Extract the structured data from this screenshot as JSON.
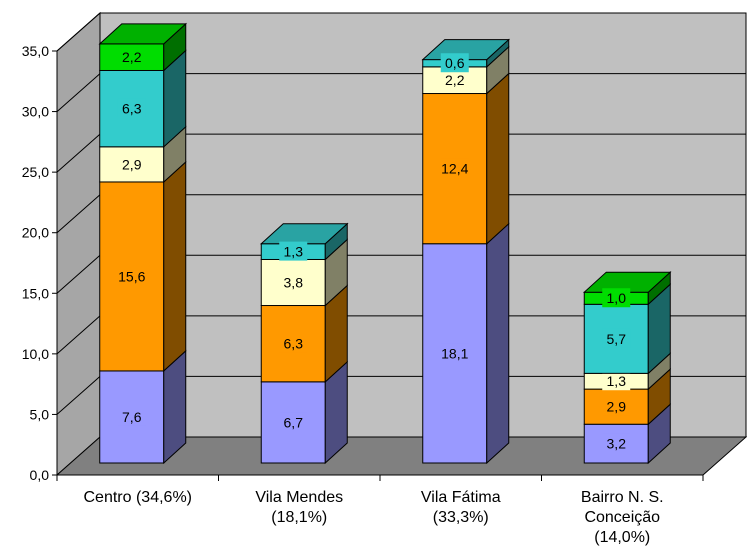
{
  "chart_data": {
    "type": "bar",
    "stacked": true,
    "three_d": true,
    "title": "",
    "xlabel": "",
    "ylabel": "",
    "ylim": [
      0,
      35
    ],
    "y_ticks": [
      "0,0",
      "5,0",
      "10,0",
      "15,0",
      "20,0",
      "25,0",
      "30,0",
      "35,0"
    ],
    "grid": true,
    "legend": "none",
    "categories": [
      [
        "Centro (34,6%)"
      ],
      [
        "Vila Mendes",
        "(18,1%)"
      ],
      [
        "Vila Fátima",
        "(33,3%)"
      ],
      [
        "Bairro N. S.",
        "Conceição",
        "(14,0%)"
      ]
    ],
    "series_colors": [
      "#9999FF",
      "#FF9900",
      "#FFFFCC",
      "#33CCCC",
      "#00DD00"
    ],
    "series": [
      {
        "values": [
          7.6,
          6.7,
          18.1,
          3.2
        ],
        "labels": [
          "7,6",
          "6,7",
          "18,1",
          "3,2"
        ]
      },
      {
        "values": [
          15.6,
          6.3,
          12.4,
          2.9
        ],
        "labels": [
          "15,6",
          "6,3",
          "12,4",
          "2,9"
        ]
      },
      {
        "values": [
          2.9,
          3.8,
          2.2,
          1.3
        ],
        "labels": [
          "2,9",
          "3,8",
          "2,2",
          "1,3"
        ]
      },
      {
        "values": [
          6.3,
          1.3,
          0.6,
          5.7
        ],
        "labels": [
          "6,3",
          "1,3",
          "0,6",
          "5,7"
        ]
      },
      {
        "values": [
          2.2,
          0.0,
          0.0,
          1.0
        ],
        "labels": [
          "2,2",
          "",
          "",
          "1,0"
        ]
      }
    ]
  }
}
